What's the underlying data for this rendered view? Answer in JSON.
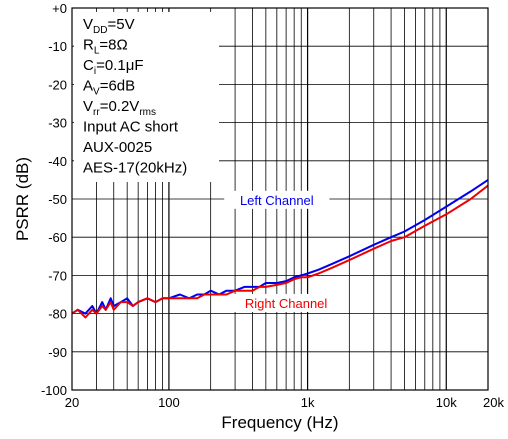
{
  "chart_data": {
    "type": "line",
    "xlabel": "Frequency (Hz)",
    "ylabel": "PSRR (dB)",
    "xscale": "log",
    "xlim": [
      20,
      20000
    ],
    "ylim": [
      -100,
      0
    ],
    "grid": true,
    "xticks": [
      {
        "value": 20,
        "label": "20"
      },
      {
        "value": 100,
        "label": "100"
      },
      {
        "value": 1000,
        "label": "1k"
      },
      {
        "value": 10000,
        "label": "10k"
      },
      {
        "value": 20000,
        "label": "20k"
      }
    ],
    "yticks": [
      {
        "value": 0,
        "label": "+0"
      },
      {
        "value": -10,
        "label": "-10"
      },
      {
        "value": -20,
        "label": "-20"
      },
      {
        "value": -30,
        "label": "-30"
      },
      {
        "value": -40,
        "label": "-40"
      },
      {
        "value": -50,
        "label": "-50"
      },
      {
        "value": -60,
        "label": "-60"
      },
      {
        "value": -70,
        "label": "-70"
      },
      {
        "value": -80,
        "label": "-80"
      },
      {
        "value": -90,
        "label": "-90"
      },
      {
        "value": -100,
        "label": "-100"
      }
    ],
    "conditions": [
      {
        "main": "V",
        "sub": "DD",
        "rest": "=5V"
      },
      {
        "main": "R",
        "sub": "L",
        "rest": "=8Ω"
      },
      {
        "main": "C",
        "sub": "i",
        "rest": "=0.1μF"
      },
      {
        "main": "A",
        "sub": "V",
        "rest": "=6dB"
      },
      {
        "main": "V",
        "sub": "rr",
        "rest": "=0.2V",
        "sub2": "rms"
      },
      {
        "main": "Input AC short"
      },
      {
        "main": "AUX-0025"
      },
      {
        "main": "AES-17(20kHz)"
      }
    ],
    "series": [
      {
        "name": "Left Channel",
        "color": "#0000ee",
        "x": [
          20,
          22,
          25,
          28,
          30,
          33,
          35,
          38,
          40,
          45,
          50,
          55,
          60,
          70,
          80,
          90,
          100,
          120,
          140,
          160,
          180,
          200,
          230,
          260,
          300,
          350,
          400,
          450,
          500,
          600,
          700,
          800,
          900,
          1000,
          1200,
          1500,
          2000,
          3000,
          4000,
          5000,
          7000,
          10000,
          15000,
          20000
        ],
        "y": [
          -80,
          -79,
          -80,
          -78,
          -80,
          -77,
          -79,
          -76,
          -78,
          -77,
          -76,
          -78,
          -77,
          -76,
          -77,
          -76,
          -76,
          -75,
          -76,
          -75,
          -75,
          -74,
          -75,
          -74,
          -74,
          -73,
          -73,
          -73,
          -72,
          -72,
          -71.5,
          -70.5,
          -70,
          -69.5,
          -68.5,
          -67,
          -65,
          -62,
          -60,
          -58.5,
          -55.5,
          -52,
          -48,
          -45
        ]
      },
      {
        "name": "Right Channel",
        "color": "#ee0000",
        "x": [
          20,
          22,
          25,
          28,
          30,
          33,
          35,
          38,
          40,
          45,
          50,
          55,
          60,
          70,
          80,
          90,
          100,
          120,
          140,
          160,
          180,
          200,
          230,
          260,
          300,
          350,
          400,
          450,
          500,
          600,
          700,
          800,
          900,
          1000,
          1200,
          1500,
          2000,
          3000,
          4000,
          5000,
          7000,
          10000,
          15000,
          20000
        ],
        "y": [
          -80,
          -79,
          -81,
          -79,
          -80,
          -78,
          -79,
          -77,
          -79,
          -77,
          -77,
          -78,
          -77,
          -76,
          -77,
          -76,
          -76,
          -76,
          -76,
          -76,
          -75,
          -75,
          -75,
          -75,
          -74,
          -74,
          -74,
          -73,
          -73,
          -72.5,
          -72,
          -71,
          -70.5,
          -70.5,
          -69.5,
          -68,
          -66,
          -63,
          -61,
          -60,
          -57,
          -54,
          -50,
          -46.5
        ]
      }
    ],
    "annotations": [
      {
        "text": "Left Channel",
        "color": "#0000ee",
        "x": 600,
        "y": -51
      },
      {
        "text": "Right Channel",
        "color": "#ee0000",
        "x": 700,
        "y": -78
      }
    ]
  }
}
